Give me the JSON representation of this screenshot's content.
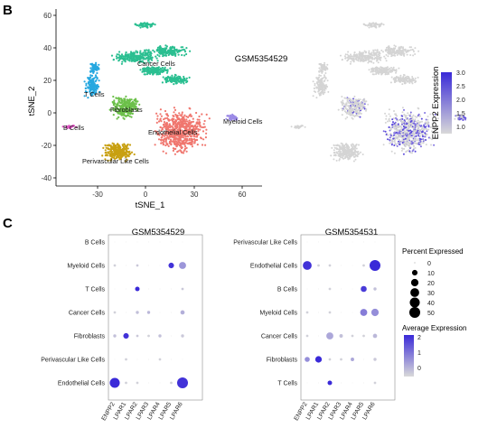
{
  "panels": {
    "b_label": "B",
    "c_label": "C"
  },
  "tsne": {
    "xlabel": "tSNE_1",
    "ylabel": "tSNE_2",
    "x_ticks": [
      "-30",
      "0",
      "30",
      "60"
    ],
    "y_ticks": [
      "60",
      "40",
      "20",
      "0",
      "-20",
      "-40"
    ],
    "clusters": [
      {
        "label": "Cancer Cells",
        "color": "#2bbf91"
      },
      {
        "label": "T Cells",
        "color": "#27a8e0"
      },
      {
        "label": "Fibroblasts",
        "color": "#6cc04a"
      },
      {
        "label": "B Cells",
        "color": "#e056c4"
      },
      {
        "label": "Endothelial Cells",
        "color": "#f0776f"
      },
      {
        "label": "Myeloid Cells",
        "color": "#9b8ae6"
      },
      {
        "label": "Perivascular Like Cells",
        "color": "#c8a012"
      }
    ]
  },
  "feature_plot": {
    "title": "GSM5354529",
    "legend_title": "ENPP2 Expression",
    "legend_ticks": [
      "3.0",
      "2.5",
      "2.0",
      "1.5",
      "1.0"
    ],
    "low_color": "#d9d9d9",
    "high_color": "#3a2ad8"
  },
  "chart_data": [
    {
      "type": "scatter",
      "title": "GSM5354529",
      "genes": [
        "ENPP2",
        "LPAR1",
        "LPAR2",
        "LPAR3",
        "LPAR4",
        "LPAR5",
        "LPAR6"
      ],
      "cell_types": [
        "B Cells",
        "Myeloid Cells",
        "T Cells",
        "Cancer Cells",
        "Fibroblasts",
        "Perivascular Like Cells",
        "Endothelial Cells"
      ],
      "points": [
        {
          "cell": "B Cells",
          "gene": "ENPP2",
          "pct": 0,
          "avg": 0
        },
        {
          "cell": "B Cells",
          "gene": "LPAR1",
          "pct": 0,
          "avg": 0
        },
        {
          "cell": "B Cells",
          "gene": "LPAR2",
          "pct": 0,
          "avg": 0
        },
        {
          "cell": "B Cells",
          "gene": "LPAR3",
          "pct": 0,
          "avg": 0
        },
        {
          "cell": "B Cells",
          "gene": "LPAR4",
          "pct": 0,
          "avg": 0
        },
        {
          "cell": "B Cells",
          "gene": "LPAR5",
          "pct": 0,
          "avg": 0
        },
        {
          "cell": "B Cells",
          "gene": "LPAR6",
          "pct": 0,
          "avg": 0
        },
        {
          "cell": "Myeloid Cells",
          "gene": "ENPP2",
          "pct": 1,
          "avg": 0.1
        },
        {
          "cell": "Myeloid Cells",
          "gene": "LPAR1",
          "pct": 0,
          "avg": 0
        },
        {
          "cell": "Myeloid Cells",
          "gene": "LPAR2",
          "pct": 1,
          "avg": 0.2
        },
        {
          "cell": "Myeloid Cells",
          "gene": "LPAR3",
          "pct": 0,
          "avg": 0
        },
        {
          "cell": "Myeloid Cells",
          "gene": "LPAR4",
          "pct": 0,
          "avg": 0
        },
        {
          "cell": "Myeloid Cells",
          "gene": "LPAR5",
          "pct": 10,
          "avg": 2.0
        },
        {
          "cell": "Myeloid Cells",
          "gene": "LPAR6",
          "pct": 18,
          "avg": 0.8
        },
        {
          "cell": "T Cells",
          "gene": "ENPP2",
          "pct": 0,
          "avg": 0
        },
        {
          "cell": "T Cells",
          "gene": "LPAR1",
          "pct": 0,
          "avg": 0
        },
        {
          "cell": "T Cells",
          "gene": "LPAR2",
          "pct": 6,
          "avg": 2.1
        },
        {
          "cell": "T Cells",
          "gene": "LPAR3",
          "pct": 0,
          "avg": 0
        },
        {
          "cell": "T Cells",
          "gene": "LPAR4",
          "pct": 0,
          "avg": 0
        },
        {
          "cell": "T Cells",
          "gene": "LPAR5",
          "pct": 0,
          "avg": 0
        },
        {
          "cell": "T Cells",
          "gene": "LPAR6",
          "pct": 1,
          "avg": 0.2
        },
        {
          "cell": "Cancer Cells",
          "gene": "ENPP2",
          "pct": 1,
          "avg": 0.1
        },
        {
          "cell": "Cancer Cells",
          "gene": "LPAR1",
          "pct": 0,
          "avg": 0
        },
        {
          "cell": "Cancer Cells",
          "gene": "LPAR2",
          "pct": 2,
          "avg": 0.3
        },
        {
          "cell": "Cancer Cells",
          "gene": "LPAR3",
          "pct": 2,
          "avg": 0.4
        },
        {
          "cell": "Cancer Cells",
          "gene": "LPAR4",
          "pct": 0,
          "avg": 0
        },
        {
          "cell": "Cancer Cells",
          "gene": "LPAR5",
          "pct": 0,
          "avg": 0
        },
        {
          "cell": "Cancer Cells",
          "gene": "LPAR6",
          "pct": 5,
          "avg": 0.5
        },
        {
          "cell": "Fibroblasts",
          "gene": "ENPP2",
          "pct": 2,
          "avg": 0.3
        },
        {
          "cell": "Fibroblasts",
          "gene": "LPAR1",
          "pct": 10,
          "avg": 2.0
        },
        {
          "cell": "Fibroblasts",
          "gene": "LPAR2",
          "pct": 1,
          "avg": 0.2
        },
        {
          "cell": "Fibroblasts",
          "gene": "LPAR3",
          "pct": 1,
          "avg": 0.1
        },
        {
          "cell": "Fibroblasts",
          "gene": "LPAR4",
          "pct": 2,
          "avg": 0.3
        },
        {
          "cell": "Fibroblasts",
          "gene": "LPAR5",
          "pct": 0,
          "avg": 0
        },
        {
          "cell": "Fibroblasts",
          "gene": "LPAR6",
          "pct": 2,
          "avg": 0.2
        },
        {
          "cell": "Perivascular Like Cells",
          "gene": "ENPP2",
          "pct": 0,
          "avg": 0
        },
        {
          "cell": "Perivascular Like Cells",
          "gene": "LPAR1",
          "pct": 1,
          "avg": 0.1
        },
        {
          "cell": "Perivascular Like Cells",
          "gene": "LPAR2",
          "pct": 0,
          "avg": 0
        },
        {
          "cell": "Perivascular Like Cells",
          "gene": "LPAR3",
          "pct": 0,
          "avg": 0
        },
        {
          "cell": "Perivascular Like Cells",
          "gene": "LPAR4",
          "pct": 1,
          "avg": 0.1
        },
        {
          "cell": "Perivascular Like Cells",
          "gene": "LPAR5",
          "pct": 0,
          "avg": 0
        },
        {
          "cell": "Perivascular Like Cells",
          "gene": "LPAR6",
          "pct": 0,
          "avg": 0
        },
        {
          "cell": "Endothelial Cells",
          "gene": "ENPP2",
          "pct": 40,
          "avg": 2.1
        },
        {
          "cell": "Endothelial Cells",
          "gene": "LPAR1",
          "pct": 1,
          "avg": 0.1
        },
        {
          "cell": "Endothelial Cells",
          "gene": "LPAR2",
          "pct": 1,
          "avg": 0.1
        },
        {
          "cell": "Endothelial Cells",
          "gene": "LPAR3",
          "pct": 0,
          "avg": 0
        },
        {
          "cell": "Endothelial Cells",
          "gene": "LPAR4",
          "pct": 0,
          "avg": 0
        },
        {
          "cell": "Endothelial Cells",
          "gene": "LPAR5",
          "pct": 1,
          "avg": 0.1
        },
        {
          "cell": "Endothelial Cells",
          "gene": "LPAR6",
          "pct": 50,
          "avg": 2.0
        }
      ]
    },
    {
      "type": "scatter",
      "title": "GSM5354531",
      "genes": [
        "ENPP2",
        "LPAR1",
        "LPAR2",
        "LPAR3",
        "LPAR4",
        "LPAR5",
        "LPAR6"
      ],
      "cell_types": [
        "Perivascular Like Cells",
        "Endothelial Cells",
        "B Cells",
        "Myeloid Cells",
        "Cancer Cells",
        "Fibroblasts",
        "T Cells"
      ],
      "points": [
        {
          "cell": "Perivascular Like Cells",
          "gene": "ENPP2",
          "pct": 0,
          "avg": 0
        },
        {
          "cell": "Perivascular Like Cells",
          "gene": "LPAR1",
          "pct": 0,
          "avg": 0
        },
        {
          "cell": "Perivascular Like Cells",
          "gene": "LPAR2",
          "pct": 0,
          "avg": 0
        },
        {
          "cell": "Perivascular Like Cells",
          "gene": "LPAR3",
          "pct": 0,
          "avg": 0
        },
        {
          "cell": "Perivascular Like Cells",
          "gene": "LPAR4",
          "pct": 0,
          "avg": 0
        },
        {
          "cell": "Perivascular Like Cells",
          "gene": "LPAR5",
          "pct": 0,
          "avg": 0
        },
        {
          "cell": "Perivascular Like Cells",
          "gene": "LPAR6",
          "pct": 0,
          "avg": 0
        },
        {
          "cell": "Endothelial Cells",
          "gene": "ENPP2",
          "pct": 30,
          "avg": 2.0
        },
        {
          "cell": "Endothelial Cells",
          "gene": "LPAR1",
          "pct": 1,
          "avg": 0.1
        },
        {
          "cell": "Endothelial Cells",
          "gene": "LPAR2",
          "pct": 1,
          "avg": 0.1
        },
        {
          "cell": "Endothelial Cells",
          "gene": "LPAR3",
          "pct": 0,
          "avg": 0
        },
        {
          "cell": "Endothelial Cells",
          "gene": "LPAR4",
          "pct": 0,
          "avg": 0
        },
        {
          "cell": "Endothelial Cells",
          "gene": "LPAR5",
          "pct": 1,
          "avg": 0.1
        },
        {
          "cell": "Endothelial Cells",
          "gene": "LPAR6",
          "pct": 50,
          "avg": 2.1
        },
        {
          "cell": "B Cells",
          "gene": "ENPP2",
          "pct": 0,
          "avg": 0
        },
        {
          "cell": "B Cells",
          "gene": "LPAR1",
          "pct": 0,
          "avg": 0
        },
        {
          "cell": "B Cells",
          "gene": "LPAR2",
          "pct": 1,
          "avg": 0.1
        },
        {
          "cell": "B Cells",
          "gene": "LPAR3",
          "pct": 0,
          "avg": 0
        },
        {
          "cell": "B Cells",
          "gene": "LPAR4",
          "pct": 0,
          "avg": 0
        },
        {
          "cell": "B Cells",
          "gene": "LPAR5",
          "pct": 12,
          "avg": 1.9
        },
        {
          "cell": "B Cells",
          "gene": "LPAR6",
          "pct": 2,
          "avg": 0.3
        },
        {
          "cell": "Myeloid Cells",
          "gene": "ENPP2",
          "pct": 1,
          "avg": 0.1
        },
        {
          "cell": "Myeloid Cells",
          "gene": "LPAR1",
          "pct": 0,
          "avg": 0
        },
        {
          "cell": "Myeloid Cells",
          "gene": "LPAR2",
          "pct": 1,
          "avg": 0.1
        },
        {
          "cell": "Myeloid Cells",
          "gene": "LPAR3",
          "pct": 0,
          "avg": 0
        },
        {
          "cell": "Myeloid Cells",
          "gene": "LPAR4",
          "pct": 0,
          "avg": 0
        },
        {
          "cell": "Myeloid Cells",
          "gene": "LPAR5",
          "pct": 18,
          "avg": 1.1
        },
        {
          "cell": "Myeloid Cells",
          "gene": "LPAR6",
          "pct": 20,
          "avg": 0.9
        },
        {
          "cell": "Cancer Cells",
          "gene": "ENPP2",
          "pct": 1,
          "avg": 0.1
        },
        {
          "cell": "Cancer Cells",
          "gene": "LPAR1",
          "pct": 0,
          "avg": 0
        },
        {
          "cell": "Cancer Cells",
          "gene": "LPAR2",
          "pct": 18,
          "avg": 0.6
        },
        {
          "cell": "Cancer Cells",
          "gene": "LPAR3",
          "pct": 3,
          "avg": 0.3
        },
        {
          "cell": "Cancer Cells",
          "gene": "LPAR4",
          "pct": 1,
          "avg": 0.1
        },
        {
          "cell": "Cancer Cells",
          "gene": "LPAR5",
          "pct": 1,
          "avg": 0.1
        },
        {
          "cell": "Cancer Cells",
          "gene": "LPAR6",
          "pct": 5,
          "avg": 0.4
        },
        {
          "cell": "Fibroblasts",
          "gene": "ENPP2",
          "pct": 8,
          "avg": 0.9
        },
        {
          "cell": "Fibroblasts",
          "gene": "LPAR1",
          "pct": 15,
          "avg": 2.1
        },
        {
          "cell": "Fibroblasts",
          "gene": "LPAR2",
          "pct": 1,
          "avg": 0.1
        },
        {
          "cell": "Fibroblasts",
          "gene": "LPAR3",
          "pct": 1,
          "avg": 0.1
        },
        {
          "cell": "Fibroblasts",
          "gene": "LPAR4",
          "pct": 3,
          "avg": 0.6
        },
        {
          "cell": "Fibroblasts",
          "gene": "LPAR5",
          "pct": 0,
          "avg": 0
        },
        {
          "cell": "Fibroblasts",
          "gene": "LPAR6",
          "pct": 2,
          "avg": 0.2
        },
        {
          "cell": "T Cells",
          "gene": "ENPP2",
          "pct": 0,
          "avg": 0
        },
        {
          "cell": "T Cells",
          "gene": "LPAR1",
          "pct": 0,
          "avg": 0
        },
        {
          "cell": "T Cells",
          "gene": "LPAR2",
          "pct": 6,
          "avg": 2.1
        },
        {
          "cell": "T Cells",
          "gene": "LPAR3",
          "pct": 0,
          "avg": 0
        },
        {
          "cell": "T Cells",
          "gene": "LPAR4",
          "pct": 0,
          "avg": 0
        },
        {
          "cell": "T Cells",
          "gene": "LPAR5",
          "pct": 0,
          "avg": 0
        },
        {
          "cell": "T Cells",
          "gene": "LPAR6",
          "pct": 1,
          "avg": 0.1
        }
      ]
    }
  ],
  "dot_legend": {
    "size_title": "Percent Expressed",
    "size_values": [
      "0",
      "10",
      "20",
      "30",
      "40",
      "50"
    ],
    "color_title": "Average Expression",
    "color_ticks": [
      "2",
      "1",
      "0"
    ],
    "low_color": "#d9d9d9",
    "high_color": "#3a2ad8"
  }
}
